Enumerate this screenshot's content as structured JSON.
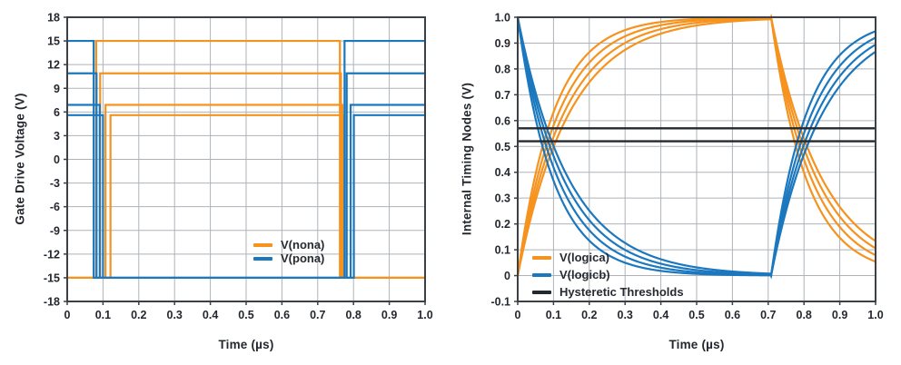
{
  "styles": {
    "background": "#ffffff",
    "grid_color": "#aeb2b8",
    "spine_color": "#3a4046",
    "tick_color": "#3a4046",
    "text_color": "#24282e",
    "orange": "#f6921e",
    "blue": "#1c78be",
    "black_trace": "#23292f"
  },
  "chart_data": [
    {
      "type": "line",
      "title": "",
      "xlabel": "Time (µs)",
      "ylabel": "Gate Drive Voltage (V)",
      "xlim": [
        0,
        1.0
      ],
      "ylim": [
        -18,
        18
      ],
      "grid": true,
      "legend_position": "inside lower-right",
      "xtick_values": [
        0,
        0.1,
        0.2,
        0.3,
        0.4,
        0.5,
        0.6,
        0.7,
        0.8,
        0.9,
        1.0
      ],
      "xtick_labels": [
        "0",
        "0.1",
        "0.2",
        "0.3",
        "0.4",
        "0.5",
        "0.6",
        "0.7",
        "0.8",
        "0.9",
        "1.0"
      ],
      "ytick_values": [
        18,
        15,
        12,
        9,
        6,
        3,
        0,
        -3,
        -6,
        -9,
        -12,
        -15,
        -18
      ],
      "ytick_labels": [
        "18",
        "15",
        "12",
        "9",
        "6",
        "3",
        "0",
        "-3",
        "-6",
        "-9",
        "-12",
        "-15",
        "-18"
      ],
      "legend": [
        {
          "label": "V(nona)",
          "color": "#f6921e"
        },
        {
          "label": "V(pona)",
          "color": "#1c78be"
        }
      ],
      "series": [
        {
          "name": "V(nona)",
          "color": "#f6921e",
          "style": "step",
          "steps": [
            [
              0,
              -15
            ],
            [
              0.081,
              15
            ],
            [
              0.762,
              -15
            ]
          ]
        },
        {
          "name": "V(nona)",
          "color": "#f6921e",
          "style": "step",
          "steps": [
            [
              0,
              -15
            ],
            [
              0.092,
              10.9
            ],
            [
              0.765,
              -15
            ]
          ]
        },
        {
          "name": "V(nona)",
          "color": "#f6921e",
          "style": "step",
          "steps": [
            [
              0,
              -15
            ],
            [
              0.107,
              6.9
            ],
            [
              0.769,
              -15
            ]
          ]
        },
        {
          "name": "V(nona)",
          "color": "#f6921e",
          "style": "step",
          "steps": [
            [
              0,
              -15
            ],
            [
              0.121,
              5.6
            ],
            [
              0.772,
              -15
            ]
          ]
        },
        {
          "name": "V(pona)",
          "color": "#1c78be",
          "style": "step",
          "steps": [
            [
              0,
              15
            ],
            [
              0.074,
              -15
            ],
            [
              0.775,
              15
            ]
          ]
        },
        {
          "name": "V(pona)",
          "color": "#1c78be",
          "style": "step",
          "steps": [
            [
              0,
              10.9
            ],
            [
              0.082,
              -15
            ],
            [
              0.781,
              10.9
            ]
          ]
        },
        {
          "name": "V(pona)",
          "color": "#1c78be",
          "style": "step",
          "steps": [
            [
              0,
              6.9
            ],
            [
              0.091,
              -15
            ],
            [
              0.792,
              6.9
            ]
          ]
        },
        {
          "name": "V(pona)",
          "color": "#1c78be",
          "style": "step",
          "steps": [
            [
              0,
              5.6
            ],
            [
              0.1,
              -15
            ],
            [
              0.801,
              5.6
            ]
          ]
        }
      ]
    },
    {
      "type": "line",
      "title": "",
      "xlabel": "Time (µs)",
      "ylabel": "Internal Timing Nodes (V)",
      "xlim": [
        0,
        1.0
      ],
      "ylim": [
        -0.1,
        1.0
      ],
      "grid": true,
      "legend_position": "inside lower-left",
      "xtick_values": [
        0,
        0.1,
        0.2,
        0.3,
        0.4,
        0.5,
        0.6,
        0.7,
        0.8,
        0.9,
        1.0
      ],
      "xtick_labels": [
        "0",
        "0.1",
        "0.2",
        "0.3",
        "0.4",
        "0.5",
        "0.6",
        "0.7",
        "0.8",
        "0.9",
        "1.0"
      ],
      "ytick_values": [
        1.0,
        0.9,
        0.8,
        0.7,
        0.6,
        0.5,
        0.4,
        0.3,
        0.2,
        0.1,
        0,
        -0.1
      ],
      "ytick_labels": [
        "1.0",
        "0.9",
        "0.8",
        "0.7",
        "0.6",
        "0.5",
        "0.4",
        "0.3",
        "0.2",
        "0.1",
        "0",
        "-0.1"
      ],
      "reset_time": 0.708,
      "thresholds": {
        "values": [
          0.57,
          0.52
        ],
        "color": "#23292f",
        "label": "Hysteretic Thresholds"
      },
      "legend": [
        {
          "label": "V(logica)",
          "color": "#f6921e"
        },
        {
          "label": "V(logicb)",
          "color": "#1c78be"
        },
        {
          "label": "Hysteretic Thresholds",
          "color": "#23292f"
        }
      ],
      "series": [
        {
          "name": "V(logica)",
          "color": "#f6921e",
          "style": "exp",
          "kind": "charge-then-discharge",
          "tau": 0.1
        },
        {
          "name": "V(logica)",
          "color": "#f6921e",
          "style": "exp",
          "kind": "charge-then-discharge",
          "tau": 0.115
        },
        {
          "name": "V(logica)",
          "color": "#f6921e",
          "style": "exp",
          "kind": "charge-then-discharge",
          "tau": 0.13
        },
        {
          "name": "V(logica)",
          "color": "#f6921e",
          "style": "exp",
          "kind": "charge-then-discharge",
          "tau": 0.145
        },
        {
          "name": "V(logicb)",
          "color": "#1c78be",
          "style": "exp",
          "kind": "discharge-then-charge",
          "tau": 0.1
        },
        {
          "name": "V(logicb)",
          "color": "#1c78be",
          "style": "exp",
          "kind": "discharge-then-charge",
          "tau": 0.115
        },
        {
          "name": "V(logicb)",
          "color": "#1c78be",
          "style": "exp",
          "kind": "discharge-then-charge",
          "tau": 0.13
        },
        {
          "name": "V(logicb)",
          "color": "#1c78be",
          "style": "exp",
          "kind": "discharge-then-charge",
          "tau": 0.145
        }
      ]
    }
  ]
}
